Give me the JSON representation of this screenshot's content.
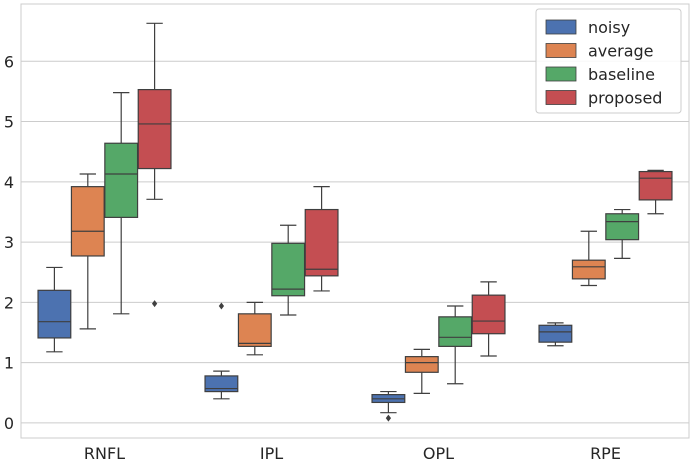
{
  "chart_data": {
    "type": "box",
    "title": "",
    "xlabel": "",
    "ylabel": "",
    "ylim": [
      -0.25,
      6.95
    ],
    "yticks": [
      0,
      1,
      2,
      3,
      4,
      5,
      6
    ],
    "grid": "horizontal",
    "legend_position": "top-right",
    "categories": [
      "RNFL",
      "IPL",
      "OPL",
      "RPE"
    ],
    "series": [
      {
        "name": "noisy",
        "color": "#4c72b0",
        "boxes": [
          {
            "whislo": 1.18,
            "q1": 1.41,
            "med": 1.68,
            "q3": 2.2,
            "whishi": 2.58,
            "fliers": []
          },
          {
            "whislo": 0.4,
            "q1": 0.52,
            "med": 0.57,
            "q3": 0.78,
            "whishi": 0.86,
            "fliers": [
              1.94
            ]
          },
          {
            "whislo": 0.17,
            "q1": 0.34,
            "med": 0.4,
            "q3": 0.47,
            "whishi": 0.52,
            "fliers": [
              0.08
            ]
          },
          {
            "whislo": 1.28,
            "q1": 1.34,
            "med": 1.51,
            "q3": 1.62,
            "whishi": 1.66,
            "fliers": []
          }
        ]
      },
      {
        "name": "average",
        "color": "#dd8452",
        "boxes": [
          {
            "whislo": 1.56,
            "q1": 2.77,
            "med": 3.18,
            "q3": 3.92,
            "whishi": 4.13,
            "fliers": []
          },
          {
            "whislo": 1.13,
            "q1": 1.27,
            "med": 1.32,
            "q3": 1.81,
            "whishi": 2.0,
            "fliers": []
          },
          {
            "whislo": 0.49,
            "q1": 0.84,
            "med": 1.0,
            "q3": 1.1,
            "whishi": 1.22,
            "fliers": []
          },
          {
            "whislo": 2.28,
            "q1": 2.39,
            "med": 2.59,
            "q3": 2.7,
            "whishi": 3.18,
            "fliers": []
          }
        ]
      },
      {
        "name": "baseline",
        "color": "#55a868",
        "boxes": [
          {
            "whislo": 1.81,
            "q1": 3.41,
            "med": 4.13,
            "q3": 4.64,
            "whishi": 5.48,
            "fliers": []
          },
          {
            "whislo": 1.79,
            "q1": 2.11,
            "med": 2.22,
            "q3": 2.98,
            "whishi": 3.28,
            "fliers": []
          },
          {
            "whislo": 0.65,
            "q1": 1.27,
            "med": 1.42,
            "q3": 1.76,
            "whishi": 1.94,
            "fliers": []
          },
          {
            "whislo": 2.73,
            "q1": 3.04,
            "med": 3.34,
            "q3": 3.47,
            "whishi": 3.54,
            "fliers": []
          }
        ]
      },
      {
        "name": "proposed",
        "color": "#c44e52",
        "boxes": [
          {
            "whislo": 3.71,
            "q1": 4.22,
            "med": 4.96,
            "q3": 5.53,
            "whishi": 6.63,
            "fliers": [
              1.98
            ]
          },
          {
            "whislo": 2.19,
            "q1": 2.44,
            "med": 2.55,
            "q3": 3.54,
            "whishi": 3.92,
            "fliers": []
          },
          {
            "whislo": 1.11,
            "q1": 1.48,
            "med": 1.69,
            "q3": 2.12,
            "whishi": 2.34,
            "fliers": []
          },
          {
            "whislo": 3.47,
            "q1": 3.7,
            "med": 4.06,
            "q3": 4.17,
            "whishi": 4.19,
            "fliers": []
          }
        ]
      }
    ]
  }
}
